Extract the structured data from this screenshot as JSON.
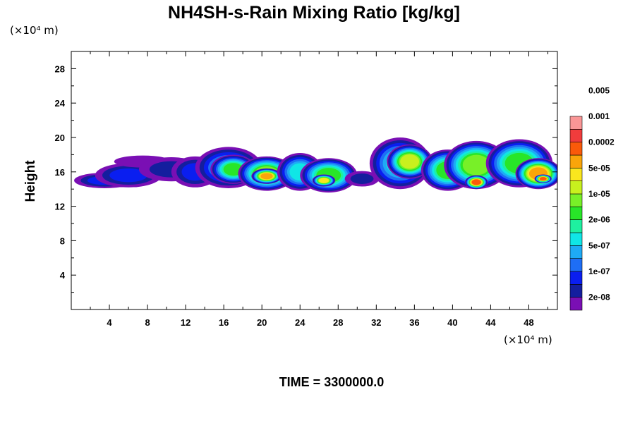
{
  "chart_data": {
    "type": "heatmap",
    "title": "NH4SH-s-Rain Mixing Ratio [kg/kg]",
    "xlabel": "",
    "ylabel": "Height",
    "x_unit": "(×10⁴ m)",
    "y_unit": "(×10⁴ m)",
    "xlim": [
      0,
      51
    ],
    "ylim": [
      0,
      30
    ],
    "x_ticks": [
      4,
      8,
      12,
      16,
      20,
      24,
      28,
      32,
      36,
      40,
      44,
      48
    ],
    "y_ticks": [
      4,
      8,
      12,
      16,
      20,
      24,
      28
    ],
    "grid": false,
    "colorbar": {
      "levels": [
        "2e-08",
        "1e-07",
        "5e-07",
        "2e-06",
        "1e-05",
        "5e-05",
        "0.0002",
        "0.001",
        "0.005"
      ],
      "colors": [
        "#7a0fb4",
        "#141e9e",
        "#0a1ef0",
        "#1e6ef5",
        "#1eaaf5",
        "#10e6e6",
        "#1ef0a0",
        "#28e628",
        "#78f028",
        "#c8f01e",
        "#fae61e",
        "#faa50a",
        "#fa5a0a",
        "#f03c3c",
        "#fa9696"
      ]
    },
    "series": [
      {
        "name": "",
        "blobs": [
          {
            "x": 3.5,
            "y": 15.0,
            "rx": 3.2,
            "ry": 0.9,
            "level": 2
          },
          {
            "x": 6.0,
            "y": 15.6,
            "rx": 3.5,
            "ry": 1.4,
            "level": 2
          },
          {
            "x": 7.5,
            "y": 17.2,
            "rx": 3.0,
            "ry": 0.7,
            "level": 0
          },
          {
            "x": 10.5,
            "y": 16.3,
            "rx": 3.4,
            "ry": 1.4,
            "level": 1
          },
          {
            "x": 13.0,
            "y": 16.0,
            "rx": 2.5,
            "ry": 1.8,
            "level": 2
          },
          {
            "x": 16.5,
            "y": 16.5,
            "rx": 3.5,
            "ry": 2.4,
            "level": 4
          },
          {
            "x": 17.0,
            "y": 16.3,
            "rx": 2.4,
            "ry": 1.7,
            "level": 7
          },
          {
            "x": 20.5,
            "y": 15.8,
            "rx": 3.0,
            "ry": 2.0,
            "level": 8
          },
          {
            "x": 20.5,
            "y": 15.5,
            "rx": 1.6,
            "ry": 0.9,
            "level": 11
          },
          {
            "x": 24.0,
            "y": 16.0,
            "rx": 2.4,
            "ry": 2.2,
            "level": 5
          },
          {
            "x": 27.0,
            "y": 15.6,
            "rx": 3.0,
            "ry": 2.0,
            "level": 7
          },
          {
            "x": 26.5,
            "y": 15.0,
            "rx": 1.2,
            "ry": 0.7,
            "level": 10
          },
          {
            "x": 30.5,
            "y": 15.2,
            "rx": 1.8,
            "ry": 0.9,
            "level": 1
          },
          {
            "x": 34.5,
            "y": 17.0,
            "rx": 3.2,
            "ry": 3.0,
            "level": 5
          },
          {
            "x": 35.5,
            "y": 17.2,
            "rx": 2.4,
            "ry": 2.0,
            "level": 9
          },
          {
            "x": 39.5,
            "y": 16.2,
            "rx": 2.8,
            "ry": 2.4,
            "level": 7
          },
          {
            "x": 42.5,
            "y": 16.8,
            "rx": 3.4,
            "ry": 2.8,
            "level": 8
          },
          {
            "x": 42.5,
            "y": 14.8,
            "rx": 1.2,
            "ry": 0.8,
            "level": 12
          },
          {
            "x": 47.0,
            "y": 17.0,
            "rx": 3.5,
            "ry": 2.8,
            "level": 7
          },
          {
            "x": 49.0,
            "y": 15.8,
            "rx": 2.4,
            "ry": 1.8,
            "level": 11
          },
          {
            "x": 49.5,
            "y": 15.2,
            "rx": 0.9,
            "ry": 0.5,
            "level": 12
          }
        ]
      }
    ]
  },
  "footer": {
    "time_text": "TIME = 3300000.0"
  }
}
